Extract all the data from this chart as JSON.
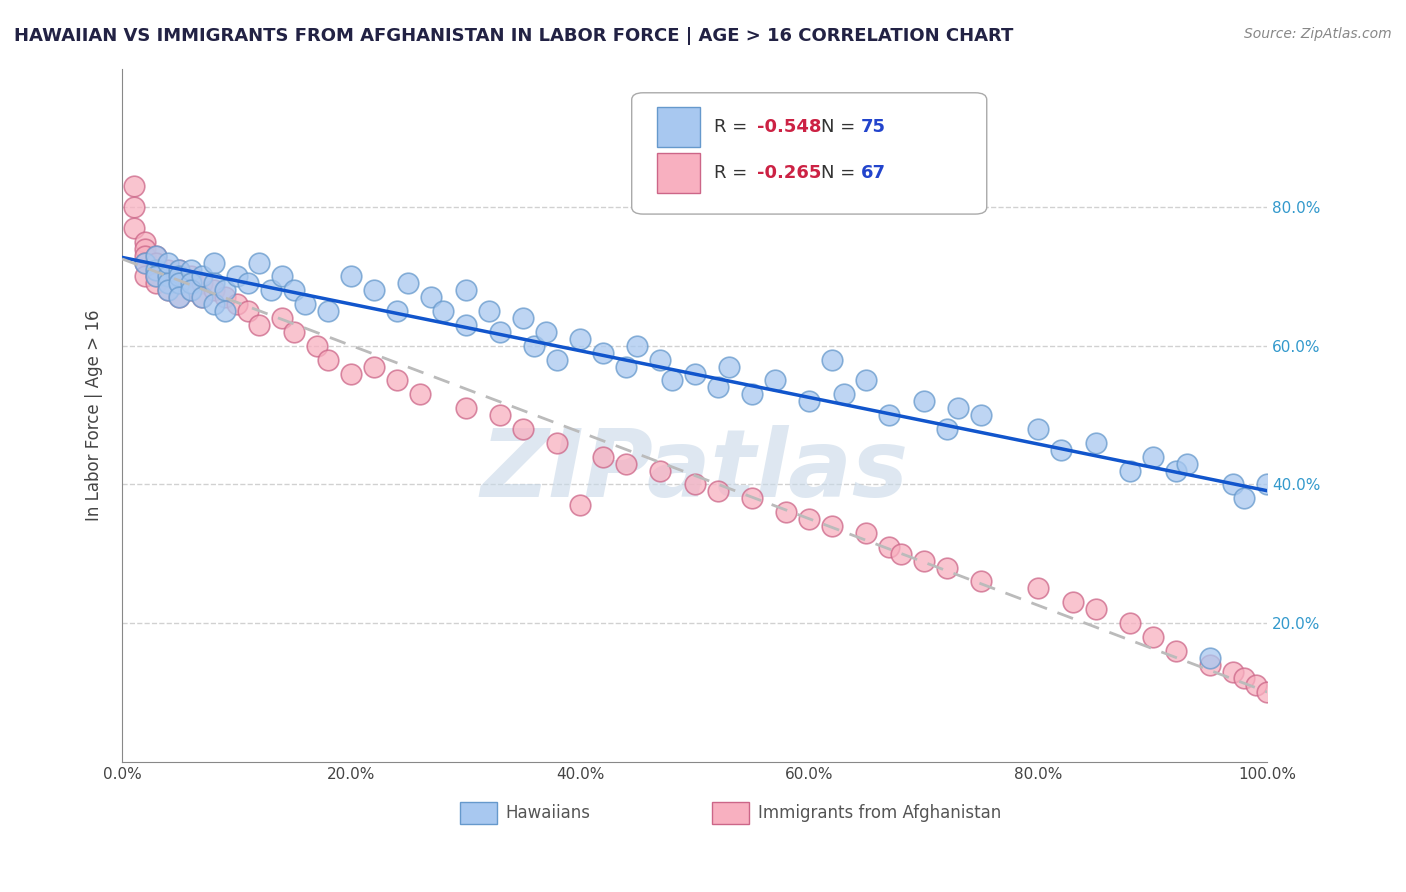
{
  "title": "HAWAIIAN VS IMMIGRANTS FROM AFGHANISTAN IN LABOR FORCE | AGE > 16 CORRELATION CHART",
  "source_text": "Source: ZipAtlas.com",
  "ylabel": "In Labor Force | Age > 16",
  "xlim": [
    0.0,
    1.0
  ],
  "ylim": [
    0.0,
    1.0
  ],
  "xticks": [
    0.0,
    0.2,
    0.4,
    0.6,
    0.8,
    1.0
  ],
  "yticks": [
    0.2,
    0.4,
    0.6,
    0.8
  ],
  "ytick_labels": [
    "20.0%",
    "40.0%",
    "60.0%",
    "80.0%"
  ],
  "xtick_labels": [
    "0.0%",
    "20.0%",
    "40.0%",
    "60.0%",
    "80.0%",
    "100.0%"
  ],
  "grid_color": "#cccccc",
  "background_color": "#ffffff",
  "hawaiian_color": "#a8c8f0",
  "hawaiian_edge_color": "#6699cc",
  "afghan_color": "#f8b0c0",
  "afghan_edge_color": "#cc6688",
  "blue_line_color": "#1155cc",
  "pink_line_color": "#bbbbbb",
  "R_hawaiian": -0.548,
  "N_hawaiian": 75,
  "R_afghan": -0.265,
  "N_afghan": 67,
  "legend_R_color": "#cc2244",
  "legend_N_color": "#2244cc",
  "watermark_text": "ZIPatlas",
  "watermark_color": "#c8d8e8",
  "hawaiian_x": [
    0.02,
    0.03,
    0.03,
    0.03,
    0.04,
    0.04,
    0.04,
    0.04,
    0.05,
    0.05,
    0.05,
    0.05,
    0.06,
    0.06,
    0.06,
    0.07,
    0.07,
    0.08,
    0.08,
    0.08,
    0.09,
    0.09,
    0.1,
    0.11,
    0.12,
    0.13,
    0.14,
    0.15,
    0.16,
    0.18,
    0.2,
    0.22,
    0.24,
    0.25,
    0.27,
    0.28,
    0.3,
    0.3,
    0.32,
    0.33,
    0.35,
    0.36,
    0.37,
    0.38,
    0.4,
    0.42,
    0.44,
    0.45,
    0.47,
    0.48,
    0.5,
    0.52,
    0.53,
    0.55,
    0.57,
    0.6,
    0.62,
    0.63,
    0.65,
    0.67,
    0.7,
    0.72,
    0.73,
    0.75,
    0.8,
    0.82,
    0.85,
    0.88,
    0.9,
    0.92,
    0.93,
    0.95,
    0.97,
    0.98,
    1.0
  ],
  "hawaiian_y": [
    0.72,
    0.71,
    0.73,
    0.7,
    0.7,
    0.72,
    0.69,
    0.68,
    0.71,
    0.7,
    0.69,
    0.67,
    0.71,
    0.69,
    0.68,
    0.7,
    0.67,
    0.72,
    0.69,
    0.66,
    0.68,
    0.65,
    0.7,
    0.69,
    0.72,
    0.68,
    0.7,
    0.68,
    0.66,
    0.65,
    0.7,
    0.68,
    0.65,
    0.69,
    0.67,
    0.65,
    0.68,
    0.63,
    0.65,
    0.62,
    0.64,
    0.6,
    0.62,
    0.58,
    0.61,
    0.59,
    0.57,
    0.6,
    0.58,
    0.55,
    0.56,
    0.54,
    0.57,
    0.53,
    0.55,
    0.52,
    0.58,
    0.53,
    0.55,
    0.5,
    0.52,
    0.48,
    0.51,
    0.5,
    0.48,
    0.45,
    0.46,
    0.42,
    0.44,
    0.42,
    0.43,
    0.15,
    0.4,
    0.38,
    0.4
  ],
  "afghan_x": [
    0.01,
    0.01,
    0.01,
    0.02,
    0.02,
    0.02,
    0.02,
    0.02,
    0.03,
    0.03,
    0.03,
    0.03,
    0.03,
    0.04,
    0.04,
    0.04,
    0.05,
    0.05,
    0.05,
    0.06,
    0.06,
    0.07,
    0.07,
    0.08,
    0.09,
    0.1,
    0.11,
    0.12,
    0.14,
    0.15,
    0.17,
    0.18,
    0.2,
    0.22,
    0.24,
    0.26,
    0.3,
    0.33,
    0.35,
    0.38,
    0.4,
    0.42,
    0.44,
    0.47,
    0.5,
    0.52,
    0.55,
    0.58,
    0.6,
    0.62,
    0.65,
    0.67,
    0.68,
    0.7,
    0.72,
    0.75,
    0.8,
    0.83,
    0.85,
    0.88,
    0.9,
    0.92,
    0.95,
    0.97,
    0.98,
    0.99,
    1.0
  ],
  "afghan_y": [
    0.83,
    0.8,
    0.77,
    0.75,
    0.74,
    0.73,
    0.72,
    0.7,
    0.73,
    0.72,
    0.71,
    0.7,
    0.69,
    0.71,
    0.7,
    0.68,
    0.71,
    0.69,
    0.67,
    0.7,
    0.68,
    0.69,
    0.67,
    0.68,
    0.67,
    0.66,
    0.65,
    0.63,
    0.64,
    0.62,
    0.6,
    0.58,
    0.56,
    0.57,
    0.55,
    0.53,
    0.51,
    0.5,
    0.48,
    0.46,
    0.37,
    0.44,
    0.43,
    0.42,
    0.4,
    0.39,
    0.38,
    0.36,
    0.35,
    0.34,
    0.33,
    0.31,
    0.3,
    0.29,
    0.28,
    0.26,
    0.25,
    0.23,
    0.22,
    0.2,
    0.18,
    0.16,
    0.14,
    0.13,
    0.12,
    0.11,
    0.1
  ]
}
